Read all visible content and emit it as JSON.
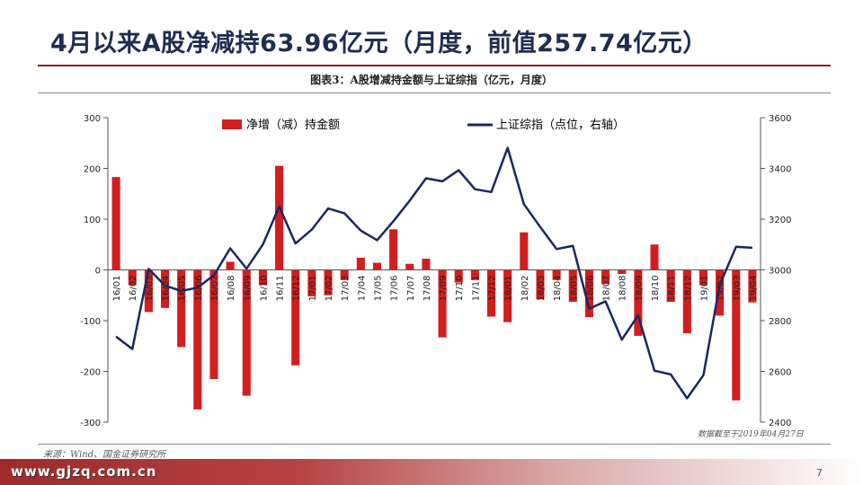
{
  "slide": {
    "title": "4月以来A股净减持63.96亿元（月度，前值257.74亿元）",
    "chart_caption": "图表3：A股增减持金额与上证综指（亿元，月度）",
    "source": "来源：Wind、国金证券研究所",
    "note": "数据截至于2019年04月27日",
    "watermark": "www.gjzq.com.cn",
    "page_number": "7"
  },
  "colors": {
    "bar": "#d21e1e",
    "line": "#1c2760",
    "title": "#1f2d4f",
    "accent_rule": "#8b1a1a"
  },
  "chart_data": {
    "type": "bar",
    "categories": [
      "16/01",
      "16/02",
      "16/03",
      "16/04",
      "16/05",
      "16/06",
      "16/07",
      "16/08",
      "16/09",
      "16/10",
      "16/11",
      "16/12",
      "17/01",
      "17/02",
      "17/03",
      "17/04",
      "17/05",
      "17/06",
      "17/07",
      "17/08",
      "17/09",
      "17/10",
      "17/11",
      "17/12",
      "18/01",
      "18/02",
      "18/03",
      "18/04",
      "18/05",
      "18/06",
      "18/07",
      "18/08",
      "18/09",
      "18/10",
      "18/11",
      "18/12",
      "19/01",
      "19/02",
      "19/03",
      "19/04"
    ],
    "tick_labels": [
      "16/01",
      "16/02",
      "16/03",
      "16/04",
      "16/05",
      "16/06",
      "16/07",
      "16/08",
      "16/09",
      "16/10",
      "16/11",
      "16/12",
      "17/01",
      "17/02",
      "17/03",
      "17/04",
      "17/05",
      "17/06",
      "17/07",
      "17/08",
      "17/09",
      "17/10",
      "17/11",
      "17/12",
      "18/01",
      "18/02",
      "18/03",
      "18/04",
      "18/05",
      "18/06",
      "18/07",
      "18/08",
      "18/09",
      "18/10",
      "18/11",
      "18/12",
      "19/01",
      "19/02",
      "19/03",
      "19/04"
    ],
    "series": [
      {
        "name": "净增（减）持金额",
        "type": "bar",
        "axis": "left",
        "values": [
          183,
          -30,
          -83,
          -75,
          -152,
          -275,
          -215,
          16,
          -248,
          -30,
          205,
          -188,
          -52,
          -50,
          -20,
          24,
          14,
          80,
          12,
          22,
          -133,
          -25,
          -20,
          -92,
          -103,
          74,
          -58,
          -20,
          -63,
          -93,
          -28,
          -8,
          -130,
          50,
          -63,
          -125,
          -30,
          -90,
          -257,
          -64
        ]
      },
      {
        "name": "上证综指（点位，右轴）",
        "type": "line",
        "axis": "right",
        "values": [
          2737,
          2688,
          3004,
          2938,
          2917,
          2930,
          2979,
          3085,
          3005,
          3100,
          3250,
          3104,
          3159,
          3242,
          3223,
          3155,
          3117,
          3192,
          3273,
          3361,
          3349,
          3393,
          3318,
          3307,
          3481,
          3259,
          3169,
          3082,
          3095,
          2847,
          2876,
          2725,
          2821,
          2603,
          2588,
          2494,
          2585,
          2941,
          3091,
          3087
        ]
      }
    ],
    "ylim_left": [
      -300,
      300
    ],
    "yticks_left": [
      -300,
      -200,
      -100,
      0,
      100,
      200,
      300
    ],
    "ylim_right": [
      2400,
      3600
    ],
    "yticks_right": [
      2400,
      2600,
      2800,
      3000,
      3200,
      3400,
      3600
    ],
    "grid": false,
    "legend_position": "top"
  }
}
